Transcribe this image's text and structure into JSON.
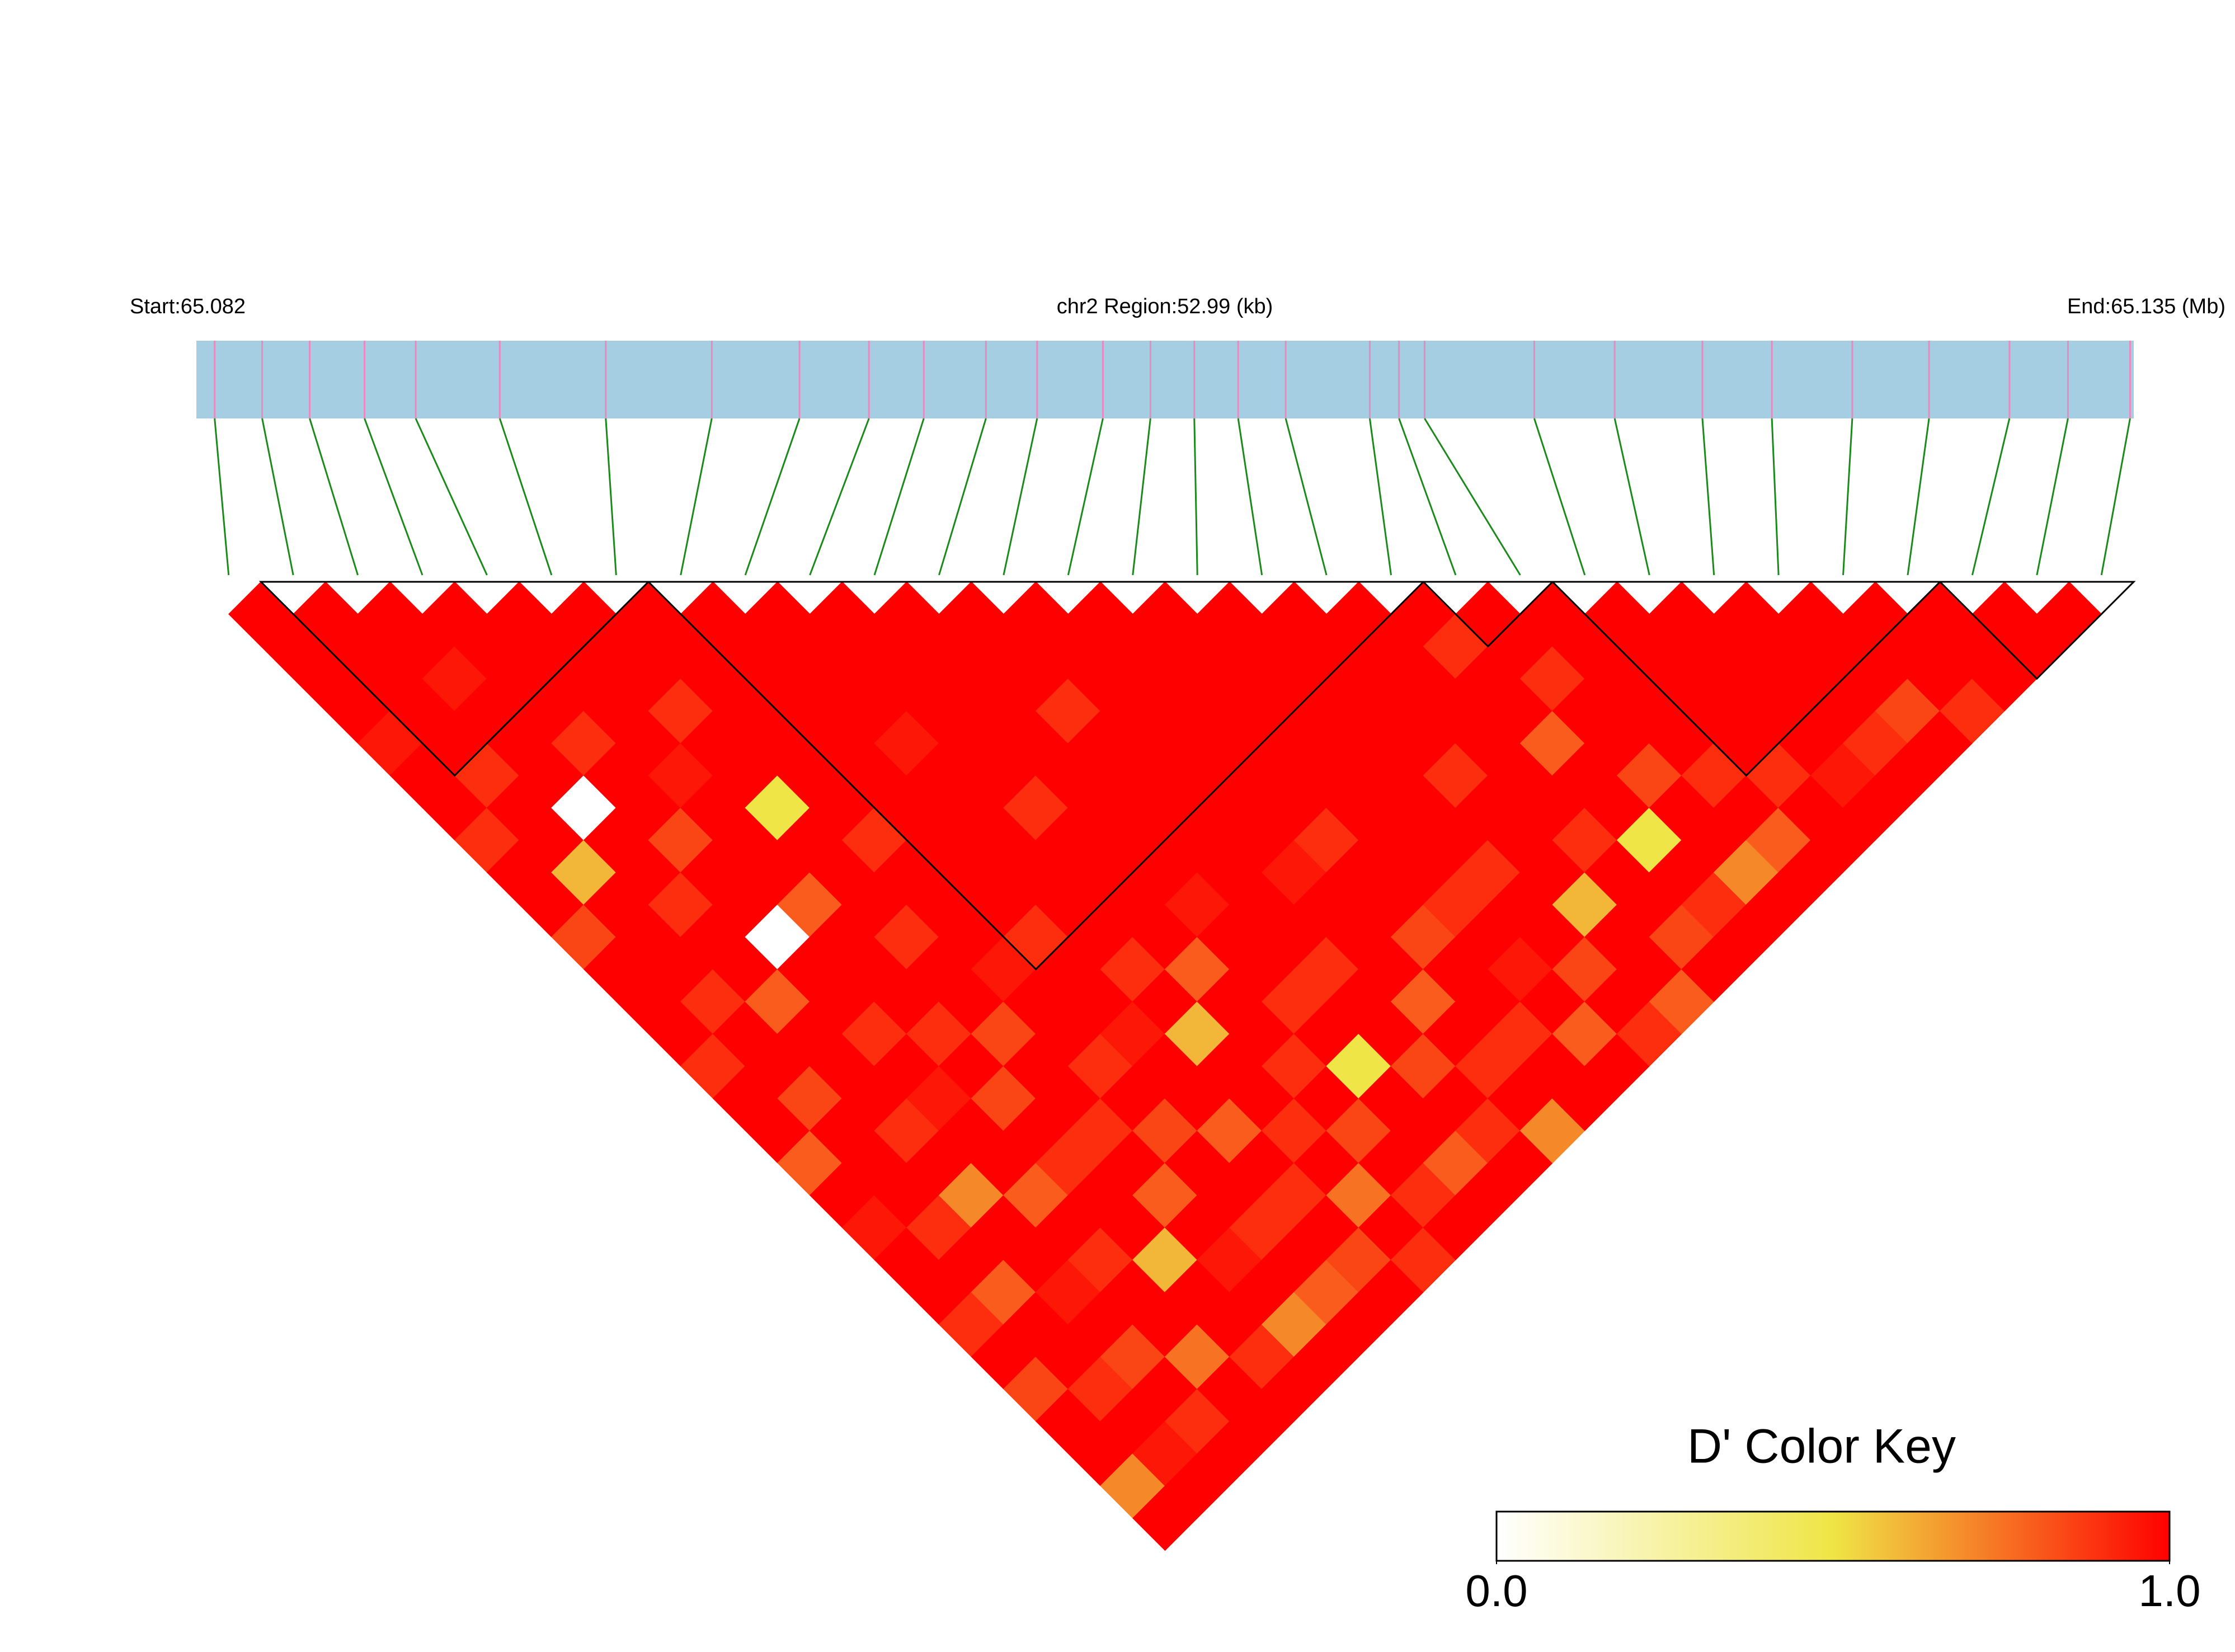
{
  "chart_data": {
    "type": "ld_heatmap",
    "start_label": "Start:65.082",
    "region_label": "chr2 Region:52.99 (kb)",
    "end_label": "End:65.135 (Mb)",
    "xlim": [
      65.082,
      65.135
    ],
    "positions": [
      65.0825,
      65.0838,
      65.0851,
      65.0866,
      65.088,
      65.0903,
      65.0932,
      65.0961,
      65.0985,
      65.1004,
      65.1019,
      65.1036,
      65.105,
      65.1068,
      65.1081,
      65.1093,
      65.1105,
      65.1118,
      65.1141,
      65.1149,
      65.1156,
      65.1186,
      65.1208,
      65.1232,
      65.1251,
      65.1273,
      65.1294,
      65.1316,
      65.1332,
      65.1349
    ],
    "track_color": "#a6cee3",
    "snp_color": "#e88ac0",
    "link_color": "#1a8a1a",
    "dprime": [
      [
        1,
        1,
        1,
        1,
        0.95,
        1,
        1,
        0.9,
        1,
        1,
        0.85,
        1,
        1,
        1,
        0.9,
        1,
        1,
        0.8,
        1,
        0.95,
        1,
        1,
        0.9,
        1,
        0.85,
        1,
        1,
        0.7,
        1
      ],
      [
        1,
        1,
        1,
        1,
        1,
        0.9,
        1,
        1,
        0.6,
        1,
        1,
        1,
        0.9,
        1,
        1,
        0.85,
        1,
        1,
        1,
        0.9,
        1,
        0.8,
        1,
        1,
        0.9,
        1,
        0.95,
        1
      ],
      [
        1,
        1,
        0.95,
        1,
        1,
        1,
        0,
        1,
        1,
        0.9,
        1,
        1,
        0.8,
        1,
        1,
        1,
        0.9,
        1,
        0.7,
        1,
        1,
        0.95,
        1,
        0.85,
        1,
        0.9,
        1
      ],
      [
        1,
        1,
        1,
        1,
        0.9,
        1,
        1,
        0.85,
        1,
        1,
        0,
        1,
        1,
        0.9,
        1,
        0.95,
        1,
        1,
        0.8,
        1,
        0.9,
        1,
        1,
        0.75,
        1,
        1
      ],
      [
        1,
        1,
        1,
        1,
        1,
        0.95,
        1,
        1,
        1,
        0.8,
        1,
        1,
        1,
        0.9,
        1,
        0.85,
        1,
        0.9,
        1,
        1,
        0.6,
        1,
        1,
        0.9,
        1
      ],
      [
        1,
        1,
        1,
        0.9,
        1,
        1,
        0.5,
        1,
        1,
        1,
        0.9,
        1,
        1,
        0.85,
        1,
        1,
        0.9,
        1,
        0.8,
        1,
        0.95,
        1,
        0.7,
        1
      ],
      [
        1,
        1,
        1,
        1,
        1,
        1,
        1,
        0.9,
        1,
        1,
        1,
        0.95,
        1,
        1,
        0.9,
        1,
        0.85,
        1,
        1,
        0.9,
        1,
        0.8,
        1
      ],
      [
        1,
        1,
        1,
        1,
        1,
        1,
        1,
        1,
        1,
        1,
        0.9,
        1,
        1,
        0.95,
        1,
        1,
        0.8,
        1,
        0.9,
        1,
        0.85,
        1
      ],
      [
        1,
        1,
        1,
        1,
        0.95,
        1,
        1,
        1,
        1,
        1,
        1,
        0.9,
        1,
        0.6,
        1,
        1,
        0.9,
        1,
        0.75,
        1,
        0.9
      ],
      [
        1,
        1,
        1,
        1,
        1,
        1,
        0.9,
        1,
        1,
        1,
        1,
        0.8,
        1,
        1,
        0.9,
        1,
        0.85,
        1,
        0.9,
        1
      ],
      [
        1,
        1,
        1,
        1,
        1,
        1,
        1,
        1,
        1,
        0.95,
        1,
        1,
        0.9,
        1,
        0.5,
        1,
        1,
        0.8,
        1
      ],
      [
        1,
        1,
        1,
        0.9,
        1,
        1,
        1,
        1,
        1,
        1,
        1,
        0.9,
        1,
        1,
        0.85,
        1,
        0.9,
        1
      ],
      [
        1,
        1,
        1,
        1,
        1,
        1,
        1,
        1,
        0.95,
        1,
        1,
        1,
        0.8,
        1,
        0.9,
        1,
        0.7
      ],
      [
        1,
        1,
        1,
        1,
        1,
        1,
        1,
        0.9,
        1,
        1,
        0.85,
        1,
        1,
        0.9,
        1,
        1
      ],
      [
        1,
        1,
        1,
        1,
        1,
        1,
        1,
        1,
        1,
        0.9,
        1,
        0.95,
        1,
        0.8,
        1
      ],
      [
        1,
        1,
        1,
        1,
        1,
        1,
        1,
        1,
        0.9,
        1,
        1,
        0.85,
        1,
        0.9
      ],
      [
        1,
        1,
        1,
        1,
        1,
        0.9,
        1,
        1,
        1,
        0.6,
        1,
        1,
        0.8
      ],
      [
        1,
        1,
        1,
        1,
        1,
        1,
        1,
        0.9,
        1,
        1,
        0.85,
        1
      ],
      [
        1,
        0.9,
        1,
        1,
        0.8,
        1,
        1,
        0.5,
        1,
        0.9,
        1
      ],
      [
        1,
        1,
        0.9,
        1,
        1,
        0.85,
        1,
        1,
        0.7,
        1
      ],
      [
        1,
        1,
        1,
        1,
        1,
        0.9,
        1,
        0.8,
        1
      ],
      [
        1,
        1,
        1,
        1,
        1,
        0.9,
        1,
        1
      ],
      [
        1,
        1,
        1,
        1,
        1,
        0.95,
        1
      ],
      [
        1,
        1,
        1,
        1,
        0.9,
        1
      ],
      [
        1,
        1,
        1,
        0.85,
        1
      ],
      [
        1,
        1,
        1,
        0.9
      ],
      [
        1,
        1,
        1
      ],
      [
        1,
        1
      ],
      [
        1
      ]
    ],
    "blocks": [
      [
        1,
        6
      ],
      [
        7,
        18
      ],
      [
        19,
        20
      ],
      [
        21,
        26
      ],
      [
        27,
        29
      ]
    ],
    "legend_title": "D' Color Key",
    "colors": [
      "#ffffff",
      "#efe546",
      "#ff0000"
    ],
    "key_ticks": [
      {
        "value": 0,
        "label": "0.0"
      },
      {
        "value": 1,
        "label": "1.0"
      }
    ]
  }
}
